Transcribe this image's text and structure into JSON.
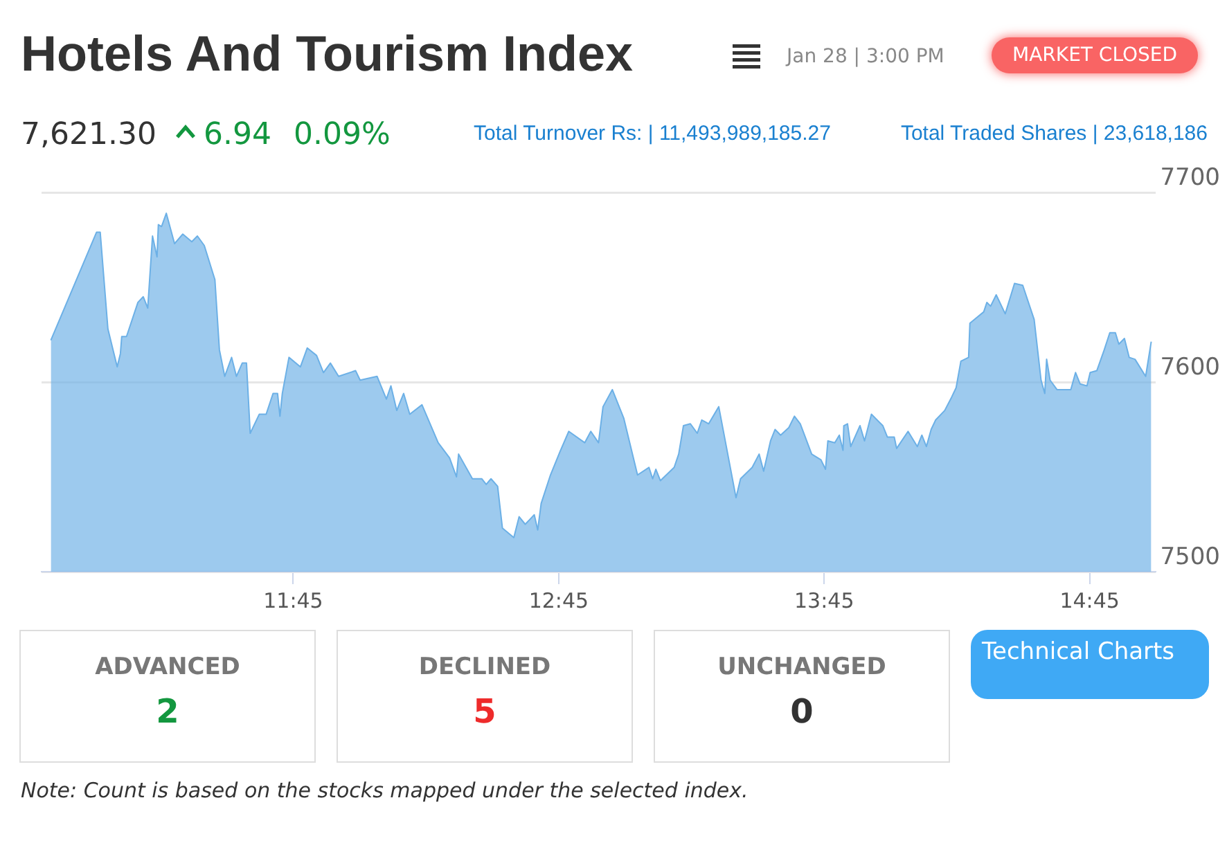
{
  "chart_data": {
    "type": "area",
    "title": "Hotels And Tourism Index",
    "annotations": [
      "Jan 28 | 3:00 PM",
      "MARKET CLOSED",
      "7,621.30",
      "6.94",
      "0.09%",
      "Total Turnover Rs: | 11,493,989,185.27",
      "Total Traded Shares | 23,618,186",
      "ADVANCED",
      "2",
      "DECLINED",
      "5",
      "UNCHANGED",
      "0",
      "Technical Charts",
      "Note: Count is based on the stocks mapped under the selected index."
    ],
    "x": [
      10.837,
      11.009,
      11.023,
      11.052,
      11.087,
      11.099,
      11.104,
      11.122,
      11.165,
      11.185,
      11.202,
      11.22,
      11.237,
      11.242,
      11.254,
      11.272,
      11.303,
      11.334,
      11.368,
      11.389,
      11.415,
      11.455,
      11.472,
      11.492,
      11.518,
      11.536,
      11.558,
      11.574,
      11.588,
      11.622,
      11.648,
      11.674,
      11.691,
      11.7,
      11.709,
      11.734,
      11.777,
      11.803,
      11.838,
      11.864,
      11.89,
      11.921,
      11.985,
      12.002,
      12.066,
      12.101,
      12.118,
      12.14,
      12.166,
      12.189,
      12.235,
      12.296,
      12.339,
      12.365,
      12.373,
      12.425,
      12.46,
      12.477,
      12.495,
      12.52,
      12.538,
      12.581,
      12.601,
      12.624,
      12.658,
      12.671,
      12.684,
      12.719,
      12.754,
      12.788,
      12.848,
      12.871,
      12.9,
      12.917,
      12.952,
      12.995,
      13.047,
      13.09,
      13.104,
      13.116,
      13.133,
      13.185,
      13.202,
      13.22,
      13.246,
      13.272,
      13.289,
      13.315,
      13.353,
      13.418,
      13.435,
      13.479,
      13.505,
      13.522,
      13.548,
      13.565,
      13.586,
      13.617,
      13.638,
      13.66,
      13.703,
      13.738,
      13.755,
      13.764,
      13.79,
      13.807,
      13.821,
      13.824,
      13.838,
      13.85,
      13.885,
      13.902,
      13.928,
      13.971,
      13.988,
      14.014,
      14.023,
      14.066,
      14.101,
      14.118,
      14.135,
      14.153,
      14.17,
      14.204,
      14.23,
      14.247,
      14.265,
      14.294,
      14.299,
      14.325,
      14.351,
      14.363,
      14.377,
      14.398,
      14.432,
      14.467,
      14.498,
      14.541,
      14.567,
      14.581,
      14.588,
      14.601,
      14.627,
      14.679,
      14.697,
      14.714,
      14.74,
      14.752,
      14.777,
      14.805,
      14.826,
      14.847,
      14.86,
      14.881,
      14.899,
      14.921,
      14.961,
      14.982
    ],
    "values": [
      7622,
      7679,
      7679,
      7628,
      7608,
      7615,
      7624,
      7624,
      7642,
      7645,
      7639,
      7677,
      7666,
      7683,
      7682,
      7689,
      7673,
      7678,
      7674,
      7677,
      7672,
      7654,
      7617,
      7603,
      7613,
      7603,
      7610,
      7610,
      7573,
      7583,
      7583,
      7594,
      7594,
      7582,
      7594,
      7613,
      7608,
      7618,
      7614,
      7605,
      7610,
      7603,
      7606,
      7601,
      7603,
      7591,
      7598,
      7585,
      7594,
      7583,
      7588,
      7568,
      7560,
      7550,
      7562,
      7549,
      7549,
      7546,
      7549,
      7545,
      7523,
      7518,
      7529,
      7525,
      7530,
      7522,
      7536,
      7551,
      7563,
      7574,
      7568,
      7574,
      7568,
      7587,
      7596,
      7581,
      7551,
      7555,
      7549,
      7554,
      7548,
      7555,
      7562,
      7577,
      7578,
      7573,
      7580,
      7578,
      7587,
      7539,
      7549,
      7555,
      7562,
      7553,
      7569,
      7575,
      7572,
      7576,
      7582,
      7578,
      7562,
      7559,
      7554,
      7569,
      7568,
      7572,
      7564,
      7577,
      7578,
      7566,
      7577,
      7569,
      7583,
      7577,
      7571,
      7571,
      7565,
      7574,
      7566,
      7572,
      7566,
      7575,
      7580,
      7585,
      7592,
      7597,
      7611,
      7613,
      7631,
      7634,
      7637,
      7642,
      7640,
      7646,
      7636,
      7652,
      7651,
      7633,
      7601,
      7594,
      7612,
      7601,
      7596,
      7596,
      7605,
      7599,
      7598,
      7605,
      7606,
      7617,
      7626,
      7626,
      7620,
      7623,
      7613,
      7612,
      7603,
      7621.3
    ],
    "color": "#6cb0e6",
    "xlim": [
      10.802,
      15.0
    ],
    "ylim": [
      7500,
      7700
    ],
    "xticks": [
      {
        "value": 11.75,
        "label": "11:45"
      },
      {
        "value": 12.75,
        "label": "12:45"
      },
      {
        "value": 13.75,
        "label": "13:45"
      },
      {
        "value": 14.75,
        "label": "14:45"
      }
    ],
    "yticks": [
      7500,
      7600,
      7700
    ],
    "grid": "y"
  }
}
